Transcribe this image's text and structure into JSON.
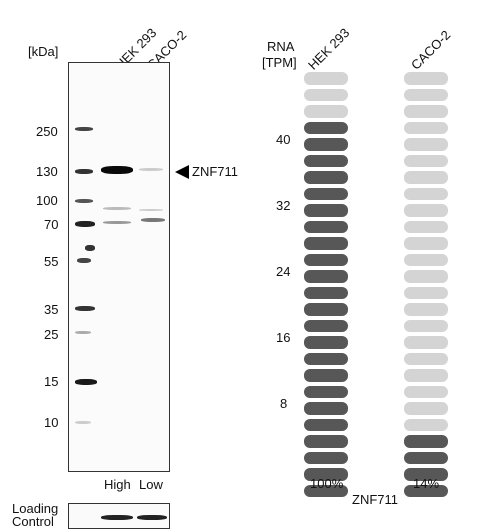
{
  "western_blot": {
    "unit_label": "[kDa]",
    "lanes": [
      "HEK 293",
      "CACO-2"
    ],
    "markers": [
      "250",
      "130",
      "100",
      "70",
      "55",
      "35",
      "25",
      "15",
      "10"
    ],
    "target_label": "ZNF711",
    "lane_expression": [
      "High",
      "Low"
    ],
    "loading_control": [
      "Loading",
      "Control"
    ]
  },
  "rna": {
    "header_line1": "RNA",
    "header_line2": "[TPM]",
    "cell_lines": [
      "HEK 293",
      "CACO-2"
    ],
    "scale_ticks": [
      "40",
      "32",
      "24",
      "16",
      "8"
    ],
    "percentages": [
      "100%",
      "14%"
    ],
    "gene": "ZNF711",
    "segments_total": 26,
    "filled_fraction": [
      1.0,
      0.14
    ],
    "colors": {
      "filled": "#575757",
      "empty": "#d4d4d4",
      "top_empty": "#e6e6e6"
    }
  }
}
